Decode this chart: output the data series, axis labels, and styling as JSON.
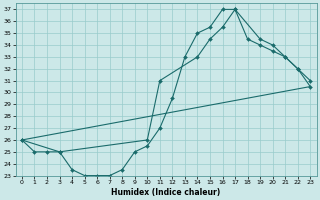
{
  "xlabel": "Humidex (Indice chaleur)",
  "bg_color": "#cce8e8",
  "grid_color": "#99cccc",
  "line_color": "#1a6b6b",
  "xlim": [
    -0.5,
    23.5
  ],
  "ylim": [
    23,
    37.5
  ],
  "xticks": [
    0,
    1,
    2,
    3,
    4,
    5,
    6,
    7,
    8,
    9,
    10,
    11,
    12,
    13,
    14,
    15,
    16,
    17,
    18,
    19,
    20,
    21,
    22,
    23
  ],
  "yticks": [
    23,
    24,
    25,
    26,
    27,
    28,
    29,
    30,
    31,
    32,
    33,
    34,
    35,
    36,
    37
  ],
  "line1_x": [
    0,
    1,
    2,
    3,
    4,
    5,
    6,
    7,
    8,
    9,
    10,
    11,
    12,
    13,
    14,
    15,
    16,
    17,
    18,
    19,
    20,
    21,
    22,
    23
  ],
  "line1_y": [
    26.0,
    25.0,
    25.0,
    25.0,
    23.5,
    23.0,
    23.0,
    23.0,
    23.5,
    25.0,
    25.5,
    27.0,
    29.5,
    33.0,
    35.0,
    35.5,
    37.0,
    37.0,
    34.5,
    34.0,
    33.5,
    33.0,
    32.0,
    31.0
  ],
  "line2_x": [
    0,
    23
  ],
  "line2_y": [
    26.0,
    30.5
  ],
  "line3_x": [
    0,
    3,
    10,
    11,
    14,
    15,
    16,
    17,
    19,
    20,
    21,
    22,
    23
  ],
  "line3_y": [
    26.0,
    25.0,
    26.0,
    31.0,
    33.0,
    34.5,
    35.5,
    37.0,
    34.5,
    34.0,
    33.0,
    32.0,
    30.5
  ]
}
